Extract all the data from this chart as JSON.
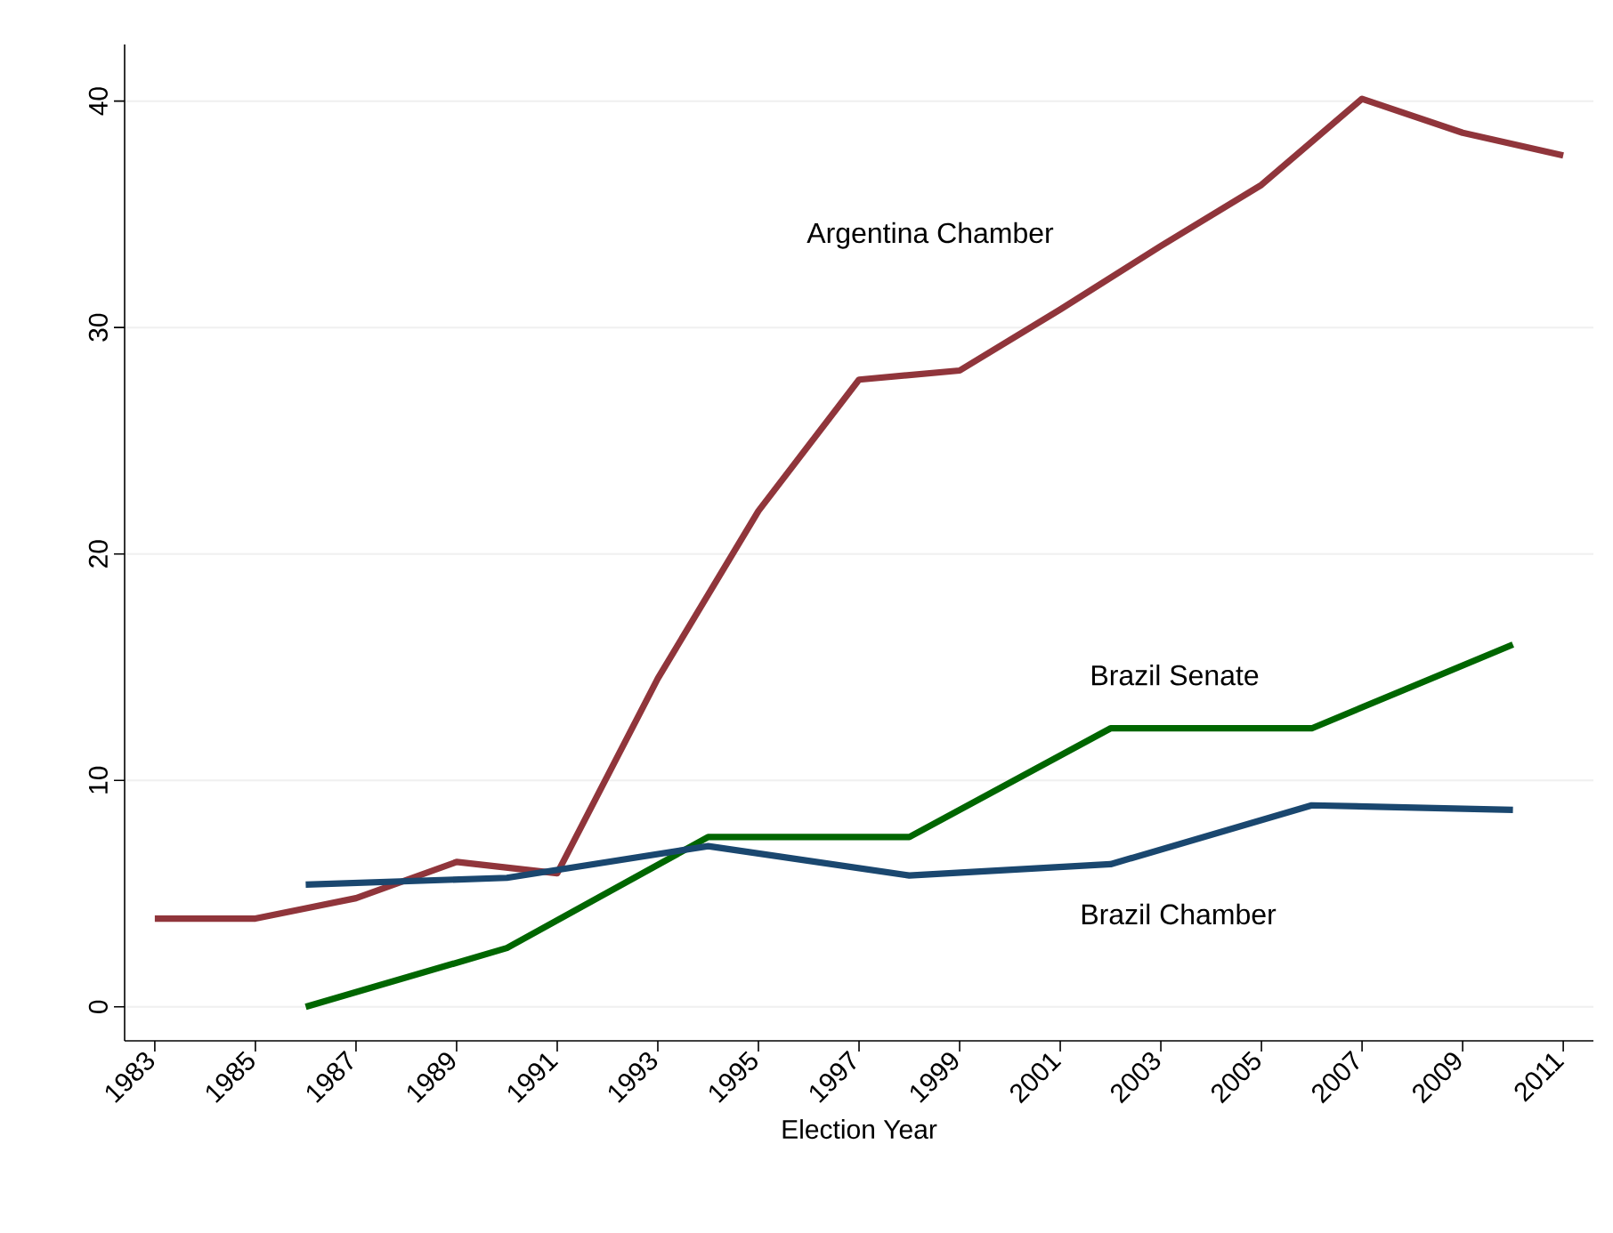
{
  "chart_data": {
    "type": "line",
    "xlabel": "Election Year",
    "xlim": [
      1982.4,
      2011.6
    ],
    "ylim": [
      -1.5,
      42.5
    ],
    "xticks": [
      1983,
      1985,
      1987,
      1989,
      1991,
      1993,
      1995,
      1997,
      1999,
      2001,
      2003,
      2005,
      2007,
      2009,
      2011
    ],
    "yticks": [
      0,
      10,
      20,
      30,
      40
    ],
    "grid": "y",
    "series": [
      {
        "name": "Argentina Chamber",
        "color": "#90353b",
        "x": [
          1983,
          1985,
          1987,
          1989,
          1991,
          1993,
          1995,
          1997,
          1999,
          2001,
          2003,
          2005,
          2007,
          2009,
          2011
        ],
        "values": [
          3.9,
          3.9,
          4.8,
          6.4,
          5.9,
          14.5,
          21.9,
          27.7,
          28.1,
          30.8,
          33.6,
          36.3,
          40.1,
          38.6,
          37.6
        ]
      },
      {
        "name": "Brazil Senate",
        "color": "#006600",
        "x": [
          1986,
          1990,
          1994,
          1998,
          2002,
          2006,
          2010
        ],
        "values": [
          0,
          2.6,
          7.5,
          7.5,
          12.3,
          12.3,
          16.0
        ]
      },
      {
        "name": "Brazil Chamber",
        "color": "#1a476f",
        "x": [
          1986,
          1990,
          1994,
          1998,
          2002,
          2006,
          2010
        ],
        "values": [
          5.4,
          5.7,
          7.1,
          5.8,
          6.3,
          8.9,
          8.7
        ]
      }
    ]
  }
}
